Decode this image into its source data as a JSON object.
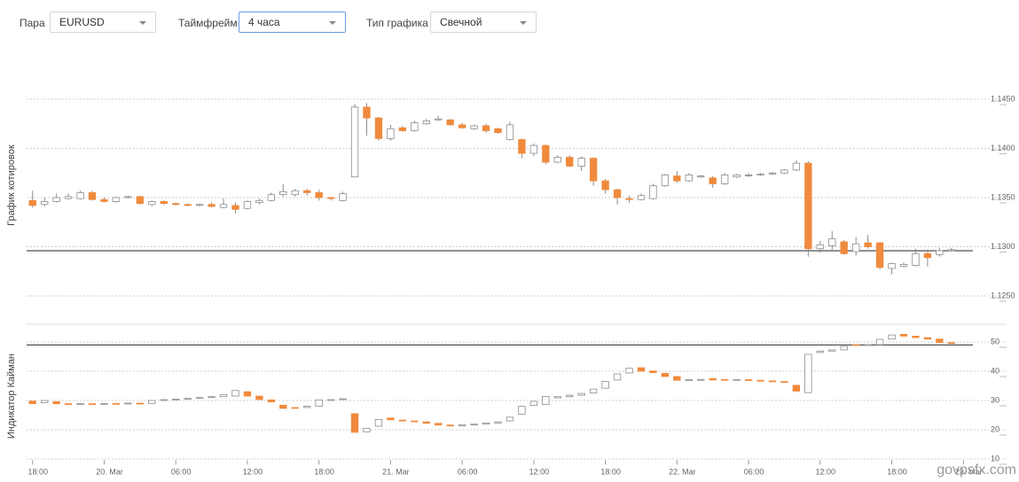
{
  "controls": [
    {
      "label": "Пара",
      "value": "EURUSD"
    },
    {
      "label": "Таймфрейм",
      "value": "4 часа"
    },
    {
      "label": "Тип графика",
      "value": "Свечной"
    }
  ],
  "watermark": "govpsfx.com",
  "chart_data": [
    {
      "type": "candlestick",
      "ylabel": "График котировок",
      "up_color": "#ffffff",
      "down_color": "#f08a3c",
      "outline_color": "#8c8c8c",
      "x": [
        0,
        1,
        2,
        3,
        4,
        5,
        6,
        7,
        8,
        9,
        10,
        11,
        12,
        13,
        14,
        15,
        16,
        17,
        18,
        19,
        20,
        21,
        22,
        23,
        24,
        25,
        26,
        27,
        28,
        29,
        30,
        31,
        32,
        33,
        34,
        35,
        36,
        37,
        38,
        39,
        40,
        41,
        42,
        43,
        44,
        45,
        46,
        47,
        48,
        49,
        50,
        51,
        52,
        53,
        54,
        55,
        56,
        57,
        58,
        59,
        60,
        61,
        62,
        63,
        64,
        65,
        66,
        67,
        68,
        69,
        70,
        71,
        72,
        73,
        74,
        75,
        76,
        77
      ],
      "open": [
        1.1347,
        1.1343,
        1.1346,
        1.1349,
        1.1349,
        1.1355,
        1.1348,
        1.1346,
        1.135,
        1.1351,
        1.1343,
        1.1346,
        1.1344,
        1.1343,
        1.1342,
        1.1343,
        1.134,
        1.1342,
        1.1339,
        1.1345,
        1.1347,
        1.1353,
        1.1353,
        1.1357,
        1.1355,
        1.135,
        1.1347,
        1.1371,
        1.1442,
        1.1431,
        1.141,
        1.1421,
        1.1418,
        1.1425,
        1.1429,
        1.1429,
        1.1424,
        1.142,
        1.1423,
        1.142,
        1.1409,
        1.1409,
        1.1395,
        1.1403,
        1.1386,
        1.1391,
        1.1382,
        1.139,
        1.1367,
        1.1358,
        1.1349,
        1.1348,
        1.1349,
        1.1362,
        1.1372,
        1.1367,
        1.1371,
        1.137,
        1.1364,
        1.1371,
        1.1372,
        1.1373,
        1.1374,
        1.1375,
        1.1378,
        1.1385,
        1.1298,
        1.1301,
        1.1305,
        1.1295,
        1.1304,
        1.1304,
        1.1278,
        1.128,
        1.1281,
        1.1293,
        1.1292,
        1.1296
      ],
      "high": [
        1.1357,
        1.135,
        1.1354,
        1.1354,
        1.1357,
        1.1357,
        1.135,
        1.1351,
        1.1352,
        1.1352,
        1.1347,
        1.1347,
        1.1345,
        1.1344,
        1.1344,
        1.1345,
        1.1349,
        1.1345,
        1.1347,
        1.1349,
        1.1355,
        1.1364,
        1.1359,
        1.1359,
        1.1358,
        1.1351,
        1.1356,
        1.1445,
        1.1446,
        1.1432,
        1.1424,
        1.1423,
        1.1428,
        1.143,
        1.1433,
        1.143,
        1.1426,
        1.1424,
        1.1425,
        1.1421,
        1.1427,
        1.141,
        1.1405,
        1.1404,
        1.1393,
        1.1393,
        1.1392,
        1.1391,
        1.1369,
        1.1359,
        1.1352,
        1.1354,
        1.1364,
        1.1374,
        1.1377,
        1.1375,
        1.1373,
        1.1372,
        1.1375,
        1.1374,
        1.1375,
        1.1375,
        1.1376,
        1.1379,
        1.1388,
        1.1387,
        1.1306,
        1.1316,
        1.1307,
        1.131,
        1.1312,
        1.1305,
        1.1284,
        1.1284,
        1.1298,
        1.1297,
        1.1299,
        1.1299
      ],
      "low": [
        1.134,
        1.1341,
        1.1345,
        1.1348,
        1.1348,
        1.1347,
        1.1345,
        1.1345,
        1.1349,
        1.1343,
        1.1341,
        1.1343,
        1.1342,
        1.1341,
        1.1341,
        1.134,
        1.1339,
        1.1334,
        1.1338,
        1.1343,
        1.1346,
        1.1351,
        1.1351,
        1.1352,
        1.1347,
        1.1347,
        1.1346,
        1.1371,
        1.1413,
        1.1408,
        1.1408,
        1.1417,
        1.1417,
        1.1424,
        1.1428,
        1.1423,
        1.142,
        1.1419,
        1.1416,
        1.1415,
        1.1408,
        1.139,
        1.1392,
        1.1384,
        1.1385,
        1.1381,
        1.1377,
        1.1362,
        1.1354,
        1.1343,
        1.1345,
        1.1347,
        1.1348,
        1.1361,
        1.1365,
        1.1366,
        1.137,
        1.136,
        1.1363,
        1.137,
        1.1371,
        1.1372,
        1.1373,
        1.1374,
        1.1377,
        1.129,
        1.1294,
        1.1297,
        1.1292,
        1.1291,
        1.1298,
        1.1277,
        1.1272,
        1.1279,
        1.128,
        1.128,
        1.129,
        1.1295
      ],
      "close": [
        1.1342,
        1.1346,
        1.135,
        1.1351,
        1.1355,
        1.1348,
        1.1346,
        1.135,
        1.1351,
        1.1344,
        1.1346,
        1.1344,
        1.1343,
        1.1342,
        1.1343,
        1.1341,
        1.1343,
        1.1338,
        1.1346,
        1.1347,
        1.1353,
        1.1356,
        1.1357,
        1.1355,
        1.135,
        1.1349,
        1.1354,
        1.1442,
        1.1431,
        1.141,
        1.142,
        1.1418,
        1.1426,
        1.1428,
        1.143,
        1.1424,
        1.1421,
        1.1423,
        1.1418,
        1.1416,
        1.1424,
        1.1395,
        1.1403,
        1.1386,
        1.1391,
        1.1382,
        1.139,
        1.1367,
        1.1358,
        1.135,
        1.1348,
        1.1352,
        1.1362,
        1.1373,
        1.1367,
        1.1373,
        1.1372,
        1.1364,
        1.1373,
        1.1373,
        1.1373,
        1.1374,
        1.1375,
        1.1378,
        1.1385,
        1.1298,
        1.1302,
        1.1308,
        1.1293,
        1.1303,
        1.13,
        1.1279,
        1.1283,
        1.1282,
        1.1293,
        1.1289,
        1.1296,
        1.1297
      ],
      "price_line": 1.1296,
      "xlim": [
        -0.5,
        78.5
      ],
      "ylim": [
        1.1225,
        1.15
      ],
      "yticks": [
        {
          "value": 1.125,
          "label": "1.1250"
        },
        {
          "value": 1.13,
          "label": "1.1300"
        },
        {
          "value": 1.135,
          "label": "1.1350"
        },
        {
          "value": 1.14,
          "label": "1.1400"
        },
        {
          "value": 1.145,
          "label": "1.1450"
        }
      ],
      "grid": true
    },
    {
      "type": "candlestick",
      "ylabel": "Индикатор Кайман",
      "up_color": "#ffffff",
      "down_color": "#f08a3c",
      "outline_color": "#8c8c8c",
      "x": [
        0,
        1,
        2,
        3,
        4,
        5,
        6,
        7,
        8,
        9,
        10,
        11,
        12,
        13,
        14,
        15,
        16,
        17,
        18,
        19,
        20,
        21,
        22,
        23,
        24,
        25,
        26,
        27,
        28,
        29,
        30,
        31,
        32,
        33,
        34,
        35,
        36,
        37,
        38,
        39,
        40,
        41,
        42,
        43,
        44,
        45,
        46,
        47,
        48,
        49,
        50,
        51,
        52,
        53,
        54,
        55,
        56,
        57,
        58,
        59,
        60,
        61,
        62,
        63,
        64,
        65,
        66,
        67,
        68,
        69,
        70,
        71,
        72,
        73,
        74,
        75,
        76,
        77
      ],
      "open": [
        29.8,
        29.2,
        29.6,
        28.9,
        28.8,
        28.9,
        28.8,
        29.0,
        28.9,
        29.1,
        29.0,
        30.0,
        30.3,
        30.5,
        30.7,
        31.0,
        31.3,
        31.5,
        33.0,
        31.5,
        30.2,
        28.4,
        27.6,
        27.6,
        28.0,
        30.0,
        30.3,
        25.5,
        19.3,
        21.2,
        24.0,
        23.3,
        23.0,
        22.7,
        22.2,
        21.6,
        21.3,
        21.7,
        21.9,
        22.3,
        23.0,
        25.3,
        28.3,
        28.6,
        30.9,
        31.3,
        31.8,
        32.6,
        34.2,
        37.0,
        39.4,
        41.2,
        40.1,
        39.3,
        38.2,
        36.9,
        37.0,
        37.5,
        37.2,
        37.0,
        37.1,
        36.9,
        36.7,
        36.5,
        35.2,
        32.7,
        46.4,
        46.9,
        47.3,
        49.1,
        48.8,
        49.1,
        51.0,
        52.6,
        52.0,
        51.5,
        51.0,
        49.8
      ],
      "close": [
        28.9,
        30.0,
        28.9,
        28.8,
        28.9,
        28.8,
        29.0,
        28.9,
        29.1,
        28.9,
        30.0,
        30.3,
        30.5,
        30.7,
        31.0,
        31.3,
        32.0,
        33.4,
        31.5,
        30.3,
        29.5,
        27.3,
        27.4,
        28.0,
        30.2,
        30.3,
        30.6,
        19.1,
        20.5,
        23.5,
        23.4,
        23.0,
        22.7,
        22.2,
        21.6,
        21.3,
        21.7,
        21.9,
        22.3,
        22.7,
        24.3,
        28.0,
        29.7,
        31.4,
        31.3,
        31.8,
        32.4,
        33.9,
        36.5,
        39.1,
        41.0,
        40.0,
        39.5,
        38.2,
        36.9,
        37.1,
        37.2,
        37.0,
        36.9,
        37.2,
        36.9,
        36.7,
        36.5,
        36.2,
        33.2,
        45.8,
        46.9,
        47.3,
        48.5,
        48.8,
        49.1,
        50.9,
        52.4,
        52.0,
        51.5,
        51.0,
        49.8,
        49.5
      ],
      "level_line": 49,
      "xlim": [
        -0.5,
        78.5
      ],
      "ylim": [
        9,
        54
      ],
      "yticks": [
        10,
        20,
        30,
        40,
        50
      ],
      "xticks": [
        {
          "value": 0,
          "label": "18:00"
        },
        {
          "value": 6,
          "label": "20. Mar"
        },
        {
          "value": 12,
          "label": "06:00"
        },
        {
          "value": 18,
          "label": "12:00"
        },
        {
          "value": 24,
          "label": "18:00"
        },
        {
          "value": 30,
          "label": "21. Mar"
        },
        {
          "value": 36,
          "label": "06:00"
        },
        {
          "value": 42,
          "label": "12:00"
        },
        {
          "value": 48,
          "label": "18:00"
        },
        {
          "value": 54,
          "label": "22. Mar"
        },
        {
          "value": 60,
          "label": "06:00"
        },
        {
          "value": 66,
          "label": "12:00"
        },
        {
          "value": 72,
          "label": "18:00"
        },
        {
          "value": 78,
          "label": "23. Mar"
        }
      ],
      "grid": true
    }
  ]
}
